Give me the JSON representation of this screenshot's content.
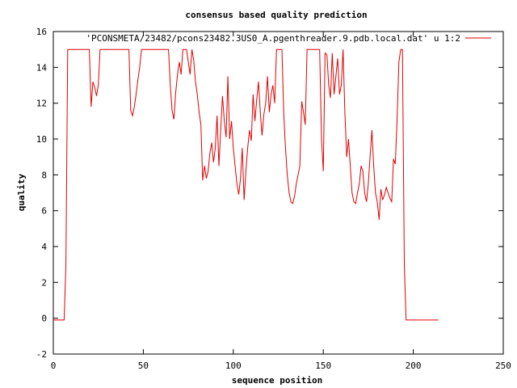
{
  "chart_data": {
    "type": "line",
    "title": "consensus based quality prediction",
    "xlabel": "sequence position",
    "ylabel": "quality",
    "xlim": [
      0,
      250
    ],
    "ylim": [
      -2,
      16
    ],
    "x_ticks": [
      0,
      50,
      100,
      150,
      200,
      250
    ],
    "y_ticks": [
      -2,
      0,
      2,
      4,
      6,
      8,
      10,
      12,
      14,
      16
    ],
    "grid": false,
    "legend_position": "top-right",
    "series": [
      {
        "name": "'PCONSMETA/23482/pcons23482.3US0_A.pgenthreader.9.pdb.local.dat' u 1:2",
        "color": "#e00000",
        "points": [
          [
            0,
            -0.1
          ],
          [
            6,
            -0.1
          ],
          [
            7,
            3
          ],
          [
            8,
            15
          ],
          [
            9,
            15
          ],
          [
            20,
            15
          ],
          [
            21,
            11.8
          ],
          [
            22,
            13.2
          ],
          [
            23,
            12.9
          ],
          [
            24,
            12.4
          ],
          [
            25,
            13
          ],
          [
            26,
            15
          ],
          [
            42,
            15
          ],
          [
            43,
            11.6
          ],
          [
            44,
            11.3
          ],
          [
            45,
            11.8
          ],
          [
            46,
            12.5
          ],
          [
            47,
            13.3
          ],
          [
            48,
            14
          ],
          [
            49,
            15
          ],
          [
            64,
            15
          ],
          [
            65,
            13
          ],
          [
            66,
            11.6
          ],
          [
            67,
            11.1
          ],
          [
            68,
            12.6
          ],
          [
            69,
            13.6
          ],
          [
            70,
            14.3
          ],
          [
            71,
            13.6
          ],
          [
            72,
            15
          ],
          [
            74,
            15
          ],
          [
            75,
            14.3
          ],
          [
            76,
            13.6
          ],
          [
            77,
            15
          ],
          [
            78,
            14.4
          ],
          [
            79,
            13.2
          ],
          [
            80,
            12.5
          ],
          [
            81,
            11.5
          ],
          [
            82,
            10.8
          ],
          [
            83,
            7.7
          ],
          [
            84,
            8.5
          ],
          [
            85,
            7.8
          ],
          [
            86,
            8.2
          ],
          [
            87,
            9.2
          ],
          [
            88,
            9.8
          ],
          [
            89,
            8.7
          ],
          [
            90,
            9.5
          ],
          [
            91,
            11.3
          ],
          [
            92,
            8.5
          ],
          [
            93,
            10.5
          ],
          [
            94,
            12.4
          ],
          [
            95,
            11
          ],
          [
            96,
            10.1
          ],
          [
            97,
            13.5
          ],
          [
            98,
            10
          ],
          [
            99,
            11
          ],
          [
            100,
            9.5
          ],
          [
            101,
            8.5
          ],
          [
            102,
            7.5
          ],
          [
            103,
            6.9
          ],
          [
            104,
            7.8
          ],
          [
            105,
            9.5
          ],
          [
            106,
            6.6
          ],
          [
            107,
            8.2
          ],
          [
            108,
            9.5
          ],
          [
            109,
            10.5
          ],
          [
            110,
            9.9
          ],
          [
            111,
            12.5
          ],
          [
            112,
            11
          ],
          [
            113,
            12.2
          ],
          [
            114,
            13.2
          ],
          [
            115,
            11.5
          ],
          [
            116,
            10.2
          ],
          [
            117,
            11.4
          ],
          [
            118,
            12
          ],
          [
            119,
            13.5
          ],
          [
            120,
            11.5
          ],
          [
            121,
            12.5
          ],
          [
            122,
            13
          ],
          [
            123,
            12
          ],
          [
            124,
            15
          ],
          [
            127,
            15
          ],
          [
            128,
            11.5
          ],
          [
            129,
            9.5
          ],
          [
            130,
            8
          ],
          [
            131,
            7
          ],
          [
            132,
            6.5
          ],
          [
            133,
            6.4
          ],
          [
            134,
            6.8
          ],
          [
            135,
            7.5
          ],
          [
            136,
            8
          ],
          [
            137,
            8.5
          ],
          [
            138,
            12.1
          ],
          [
            139,
            11.5
          ],
          [
            140,
            10.8
          ],
          [
            141,
            15
          ],
          [
            148,
            15
          ],
          [
            149,
            10
          ],
          [
            150,
            8.2
          ],
          [
            151,
            14.8
          ],
          [
            152,
            14.7
          ],
          [
            153,
            13
          ],
          [
            154,
            12.3
          ],
          [
            155,
            14.8
          ],
          [
            156,
            12.5
          ],
          [
            157,
            13.5
          ],
          [
            158,
            14.5
          ],
          [
            159,
            12.5
          ],
          [
            160,
            13
          ],
          [
            161,
            15
          ],
          [
            162,
            11.5
          ],
          [
            163,
            9
          ],
          [
            164,
            10
          ],
          [
            165,
            8.5
          ],
          [
            166,
            7
          ],
          [
            167,
            6.5
          ],
          [
            168,
            6.4
          ],
          [
            169,
            7
          ],
          [
            170,
            7.5
          ],
          [
            171,
            8.5
          ],
          [
            172,
            8.2
          ],
          [
            173,
            7
          ],
          [
            174,
            6.5
          ],
          [
            175,
            7.5
          ],
          [
            176,
            9
          ],
          [
            177,
            10.5
          ],
          [
            178,
            8.5
          ],
          [
            179,
            7
          ],
          [
            180,
            6.5
          ],
          [
            181,
            5.5
          ],
          [
            182,
            7.2
          ],
          [
            183,
            6.6
          ],
          [
            184,
            6.9
          ],
          [
            185,
            7.3
          ],
          [
            186,
            7
          ],
          [
            187,
            6.7
          ],
          [
            188,
            6.5
          ],
          [
            189,
            8.9
          ],
          [
            190,
            8.6
          ],
          [
            191,
            11
          ],
          [
            192,
            14.3
          ],
          [
            193,
            15
          ],
          [
            194,
            15
          ],
          [
            195,
            3
          ],
          [
            196,
            -0.1
          ],
          [
            214,
            -0.1
          ]
        ]
      }
    ]
  }
}
